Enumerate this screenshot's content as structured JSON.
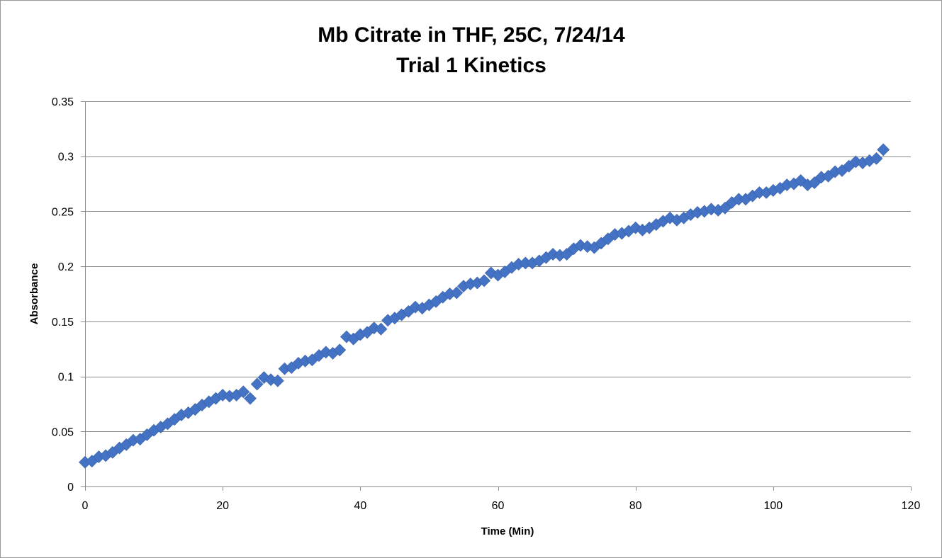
{
  "chart_data": {
    "type": "scatter",
    "title_lines": [
      "Mb Citrate in THF, 25C, 7/24/14",
      "Trial 1 Kinetics"
    ],
    "xlabel": "Time (Min)",
    "ylabel": "Absorbance",
    "xlim": [
      0,
      120
    ],
    "ylim": [
      0,
      0.35
    ],
    "xticks": [
      0,
      20,
      40,
      60,
      80,
      100,
      120
    ],
    "yticks": [
      0,
      0.05,
      0.1,
      0.15,
      0.2,
      0.25,
      0.3,
      0.35
    ],
    "ytick_labels": [
      "0",
      "0.05",
      "0.1",
      "0.15",
      "0.2",
      "0.25",
      "0.3",
      "0.35"
    ],
    "grid": "horizontal",
    "legend": "none",
    "marker": "diamond",
    "marker_color": "#4472C4",
    "series": [
      {
        "x": [
          0,
          1,
          2,
          3,
          4,
          5,
          6,
          7,
          8,
          9,
          10,
          11,
          12,
          13,
          14,
          15,
          16,
          17,
          18,
          19,
          20,
          21,
          22,
          23,
          24,
          25,
          26,
          27,
          28,
          29,
          30,
          31,
          32,
          33,
          34,
          35,
          36,
          37,
          38,
          39,
          40,
          41,
          42,
          43,
          44,
          45,
          46,
          47,
          48,
          49,
          50,
          51,
          52,
          53,
          54,
          55,
          56,
          57,
          58,
          59,
          60,
          61,
          62,
          63,
          64,
          65,
          66,
          67,
          68,
          69,
          70,
          71,
          72,
          73,
          74,
          75,
          76,
          77,
          78,
          79,
          80,
          81,
          82,
          83,
          84,
          85,
          86,
          87,
          88,
          89,
          90,
          91,
          92,
          93,
          94,
          95,
          96,
          97,
          98,
          99,
          100,
          101,
          102,
          103,
          104,
          105,
          106,
          107,
          108,
          109,
          110,
          111,
          112,
          113,
          114,
          115,
          116
        ],
        "y": [
          0.022,
          0.023,
          0.027,
          0.028,
          0.031,
          0.035,
          0.038,
          0.042,
          0.043,
          0.047,
          0.051,
          0.054,
          0.057,
          0.061,
          0.065,
          0.067,
          0.07,
          0.074,
          0.077,
          0.08,
          0.083,
          0.082,
          0.083,
          0.086,
          0.08,
          0.093,
          0.099,
          0.097,
          0.096,
          0.107,
          0.108,
          0.112,
          0.114,
          0.115,
          0.119,
          0.122,
          0.121,
          0.124,
          0.136,
          0.134,
          0.138,
          0.14,
          0.144,
          0.143,
          0.151,
          0.153,
          0.156,
          0.159,
          0.163,
          0.162,
          0.165,
          0.168,
          0.172,
          0.175,
          0.176,
          0.182,
          0.184,
          0.185,
          0.187,
          0.194,
          0.192,
          0.195,
          0.199,
          0.202,
          0.203,
          0.203,
          0.205,
          0.208,
          0.211,
          0.21,
          0.211,
          0.216,
          0.219,
          0.218,
          0.217,
          0.221,
          0.225,
          0.229,
          0.23,
          0.232,
          0.235,
          0.233,
          0.235,
          0.238,
          0.241,
          0.244,
          0.242,
          0.244,
          0.247,
          0.249,
          0.25,
          0.252,
          0.251,
          0.253,
          0.258,
          0.261,
          0.261,
          0.264,
          0.267,
          0.267,
          0.269,
          0.271,
          0.274,
          0.275,
          0.278,
          0.274,
          0.276,
          0.281,
          0.282,
          0.286,
          0.287,
          0.291,
          0.295,
          0.294,
          0.296,
          0.298,
          0.306
        ]
      }
    ]
  }
}
